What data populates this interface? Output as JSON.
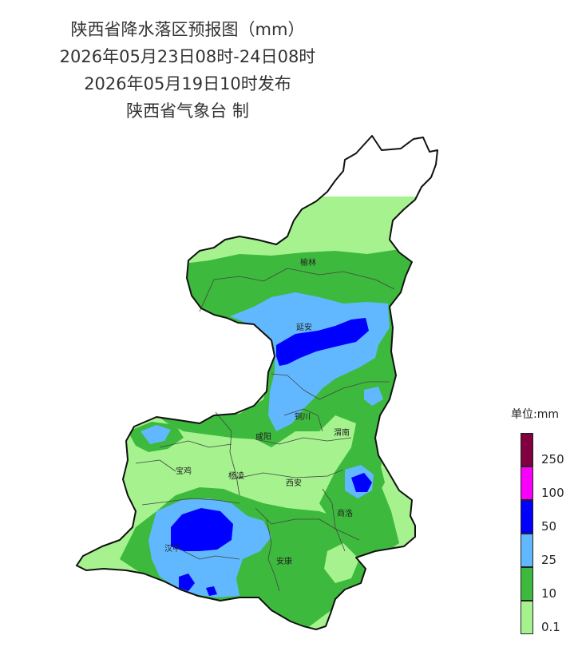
{
  "header": {
    "title": "陕西省降水落区预报图（mm）",
    "period": "2026年05月23日08时-24日08时",
    "issued": "2026年05月19日10时发布",
    "issuer": "陕西省气象台 制"
  },
  "cities": {
    "yulin": "榆林",
    "yanan": "延安",
    "tongchuan": "铜川",
    "xianyang": "咸阳",
    "weinan": "渭南",
    "baoji": "宝鸡",
    "yangling": "杨凌",
    "xian": "西安",
    "shangluo": "商洛",
    "hanzhong": "汉中",
    "ankang": "安康"
  },
  "legend": {
    "title": "单位:mm",
    "levels": [
      {
        "label": "0.1",
        "color": "#a6f28f"
      },
      {
        "label": "10",
        "color": "#3dba3d"
      },
      {
        "label": "25",
        "color": "#61b8ff"
      },
      {
        "label": "50",
        "color": "#0000ff"
      },
      {
        "label": "100",
        "color": "#fa00fa"
      },
      {
        "label": "250",
        "color": "#800040"
      }
    ]
  }
}
